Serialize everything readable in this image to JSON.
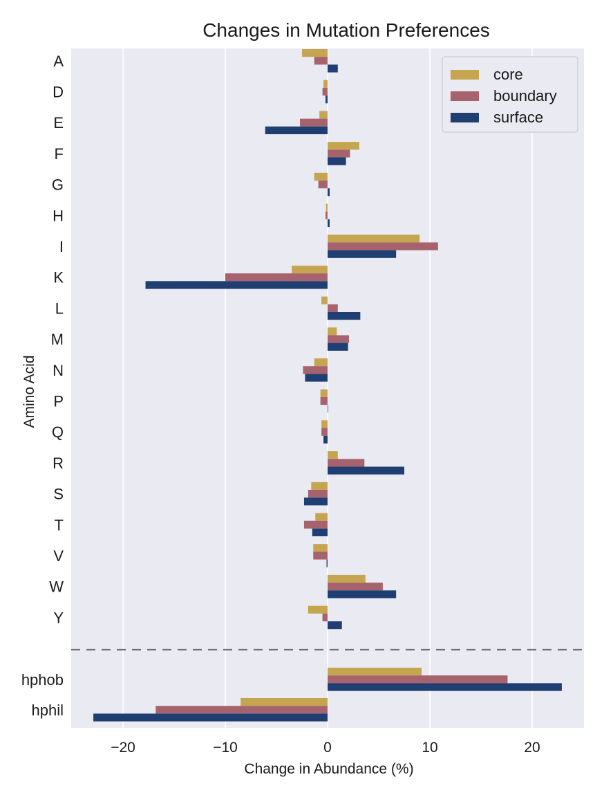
{
  "chart_data": {
    "type": "bar",
    "orientation": "horizontal",
    "title": "Changes in Mutation Preferences",
    "xlabel": "Change in Abundance (%)",
    "ylabel": "Amino Acid",
    "xlim": [
      -25,
      25
    ],
    "xticks": [
      -20,
      -10,
      0,
      10,
      20
    ],
    "xtick_labels": [
      "−20",
      "−10",
      "0",
      "10",
      "20"
    ],
    "grid": true,
    "legend_position": "top-right",
    "categories": [
      "A",
      "D",
      "E",
      "F",
      "G",
      "H",
      "I",
      "K",
      "L",
      "M",
      "N",
      "P",
      "Q",
      "R",
      "S",
      "T",
      "V",
      "W",
      "Y"
    ],
    "series": [
      {
        "name": "core",
        "color": "#c6a550",
        "values": [
          -2.5,
          -0.4,
          -0.8,
          3.1,
          -1.3,
          -0.15,
          9.0,
          -3.5,
          -0.6,
          0.9,
          -1.3,
          -0.7,
          -0.6,
          1.0,
          -1.6,
          -1.2,
          -1.4,
          3.7,
          -1.9
        ]
      },
      {
        "name": "boundary",
        "color": "#a6636e",
        "values": [
          -1.3,
          -0.5,
          -2.7,
          2.2,
          -0.9,
          -0.2,
          10.8,
          -10.0,
          1.0,
          2.1,
          -2.4,
          -0.7,
          -0.6,
          3.6,
          -1.9,
          -2.3,
          -1.4,
          5.4,
          -0.5
        ]
      },
      {
        "name": "surface",
        "color": "#1f3f73",
        "values": [
          1.0,
          -0.2,
          -6.1,
          1.8,
          0.2,
          0.2,
          6.7,
          -17.8,
          3.2,
          2.0,
          -2.2,
          0.0,
          -0.4,
          7.5,
          -2.3,
          -1.5,
          -0.1,
          6.7,
          1.4
        ]
      }
    ],
    "summary_categories": [
      "hphob",
      "hphil"
    ],
    "summary_series": [
      {
        "name": "core",
        "values": [
          9.2,
          -8.5
        ]
      },
      {
        "name": "boundary",
        "values": [
          17.6,
          -16.8
        ]
      },
      {
        "name": "surface",
        "values": [
          22.9,
          -22.9
        ]
      }
    ]
  }
}
